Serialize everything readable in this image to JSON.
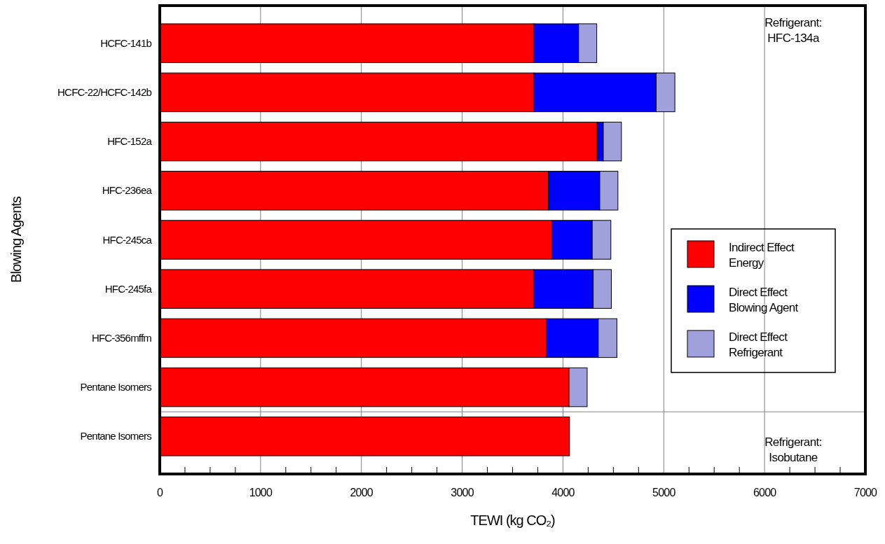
{
  "chart_data": {
    "type": "bar",
    "orientation": "horizontal",
    "stacked": true,
    "categories": [
      "HCFC-141b",
      "HCFC-22/HCFC-142b",
      "HFC-152a",
      "HFC-236ea",
      "HFC-245ca",
      "HFC-245fa",
      "HFC-356mffm",
      "Pentane Isomers",
      "Pentane Isomers"
    ],
    "series": [
      {
        "name": "Indirect Effect Energy",
        "color": "#ff0000",
        "values": [
          3710,
          3710,
          4340,
          3855,
          3890,
          3710,
          3835,
          4060,
          4065
        ]
      },
      {
        "name": "Direct Effect Blowing Agent",
        "color": "#0000ff",
        "values": [
          445,
          1215,
          60,
          510,
          400,
          590,
          515,
          0,
          0
        ]
      },
      {
        "name": "Direct Effect Refrigerant",
        "color": "#a0a0dc",
        "values": [
          180,
          185,
          180,
          180,
          185,
          180,
          185,
          180,
          0
        ]
      }
    ],
    "xlabel": "TEWI (kg CO₂)",
    "ylabel": "Blowing Agents",
    "xlim": [
      0,
      7000
    ],
    "xticks": [
      0,
      {
        "value": 250,
        "label": null
      },
      {
        "value": 500,
        "label": null
      },
      {
        "value": 750,
        "label": null
      },
      1000,
      {
        "value": 1250,
        "label": null
      },
      {
        "value": 1500,
        "label": null
      },
      {
        "value": 1750,
        "label": null
      },
      2000,
      {
        "value": 2250,
        "label": null
      },
      {
        "value": 2500,
        "label": null
      },
      {
        "value": 2750,
        "label": null
      },
      3000,
      {
        "value": 3250,
        "label": null
      },
      {
        "value": 3500,
        "label": null
      },
      {
        "value": 3750,
        "label": null
      },
      4000,
      {
        "value": 4250,
        "label": null
      },
      {
        "value": 4500,
        "label": null
      },
      {
        "value": 4750,
        "label": null
      },
      5000,
      {
        "value": 5250,
        "label": null
      },
      {
        "value": 5500,
        "label": null
      },
      {
        "value": 5750,
        "label": null
      },
      6000,
      {
        "value": 6250,
        "label": null
      },
      {
        "value": 6500,
        "label": null
      },
      {
        "value": 6750,
        "label": null
      },
      7000
    ],
    "grid": "x",
    "legend": "right",
    "annotations": [
      "Refrigerant: HFC-134a",
      "Refrigerant: Isobutane"
    ]
  }
}
